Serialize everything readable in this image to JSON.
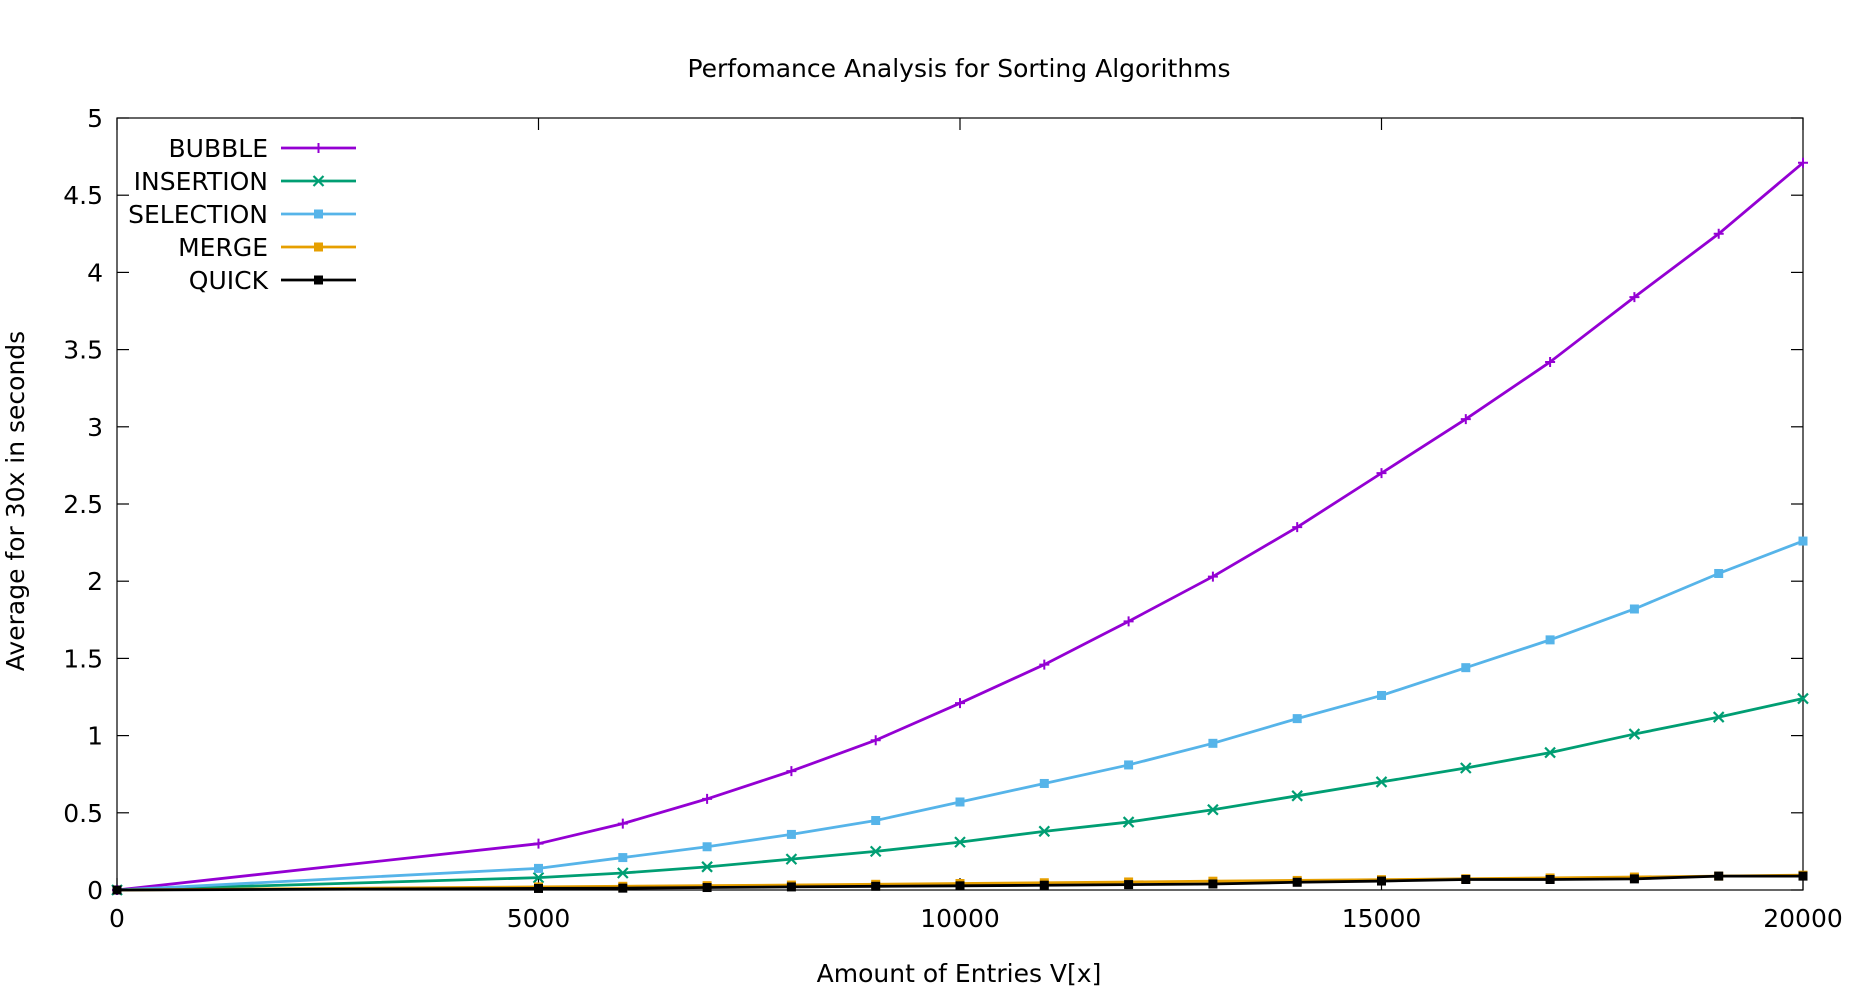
{
  "chart_data": {
    "type": "line",
    "title": "Perfomance Analysis for Sorting Algorithms",
    "xlabel": "Amount of Entries V[x]",
    "ylabel": "Average for 30x in seconds",
    "xlim": [
      0,
      20000
    ],
    "ylim": [
      0,
      5
    ],
    "xticks": [
      0,
      5000,
      10000,
      15000,
      20000
    ],
    "yticks": [
      0,
      0.5,
      1,
      1.5,
      2,
      2.5,
      3,
      3.5,
      4,
      4.5,
      5
    ],
    "xtick_labels": [
      "0",
      "5000",
      "10000",
      "15000",
      "20000"
    ],
    "ytick_labels": [
      "0",
      "0.5",
      "1",
      "1.5",
      "2",
      "2.5",
      "3",
      "3.5",
      "4",
      "4.5",
      "5"
    ],
    "grid": false,
    "legend_position": "top-left",
    "x": [
      0,
      5000,
      6000,
      7000,
      8000,
      9000,
      10000,
      11000,
      12000,
      13000,
      14000,
      15000,
      16000,
      17000,
      18000,
      19000,
      20000
    ],
    "series": [
      {
        "name": "BUBBLE",
        "color": "#9400d3",
        "marker": "plus",
        "values": [
          0,
          0.3,
          0.43,
          0.59,
          0.77,
          0.97,
          1.21,
          1.46,
          1.74,
          2.03,
          2.35,
          2.7,
          3.05,
          3.42,
          3.84,
          4.25,
          4.71
        ]
      },
      {
        "name": "INSERTION",
        "color": "#009e73",
        "marker": "cross",
        "values": [
          0,
          0.08,
          0.11,
          0.15,
          0.2,
          0.25,
          0.31,
          0.38,
          0.44,
          0.52,
          0.61,
          0.7,
          0.79,
          0.89,
          1.01,
          1.12,
          1.24
        ]
      },
      {
        "name": "SELECTION",
        "color": "#56b4e9",
        "marker": "square",
        "values": [
          0,
          0.14,
          0.21,
          0.28,
          0.36,
          0.45,
          0.57,
          0.69,
          0.81,
          0.95,
          1.11,
          1.26,
          1.44,
          1.62,
          1.82,
          2.05,
          2.26
        ]
      },
      {
        "name": "MERGE",
        "color": "#e69f00",
        "marker": "square",
        "values": [
          0,
          0.02,
          0.024,
          0.028,
          0.032,
          0.037,
          0.042,
          0.047,
          0.052,
          0.057,
          0.062,
          0.067,
          0.073,
          0.078,
          0.084,
          0.09,
          0.096
        ]
      },
      {
        "name": "QUICK",
        "color": "#000000",
        "marker": "square",
        "values": [
          0,
          0.01,
          0.012,
          0.016,
          0.02,
          0.024,
          0.027,
          0.031,
          0.035,
          0.039,
          0.05,
          0.058,
          0.068,
          0.068,
          0.072,
          0.09,
          0.09
        ]
      }
    ]
  }
}
